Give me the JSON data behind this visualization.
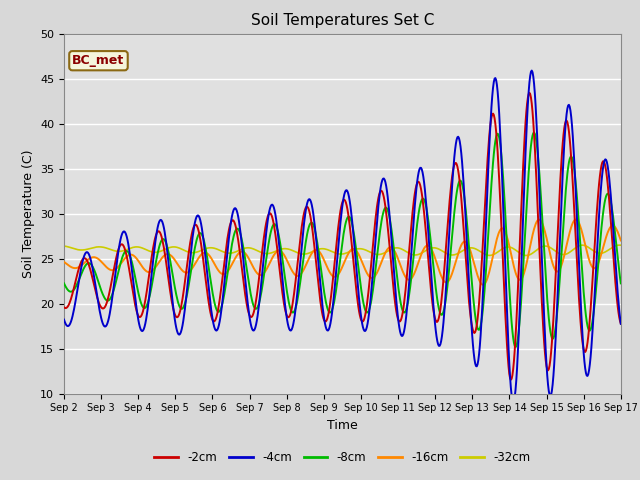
{
  "title": "Soil Temperatures Set C",
  "xlabel": "Time",
  "ylabel": "Soil Temperature (C)",
  "ylim": [
    10,
    50
  ],
  "annotation": "BC_met",
  "legend_labels": [
    "-2cm",
    "-4cm",
    "-8cm",
    "-16cm",
    "-32cm"
  ],
  "legend_colors": [
    "#cc0000",
    "#0000cc",
    "#00bb00",
    "#ff8800",
    "#cccc00"
  ],
  "bg_color": "#e0e0e0",
  "grid_color": "#ffffff",
  "title_fontsize": 11,
  "axis_fontsize": 9,
  "tick_fontsize": 8,
  "yticks": [
    10,
    15,
    20,
    25,
    30,
    35,
    40,
    45,
    50
  ],
  "xtick_labels": [
    "Sep 2",
    "Sep 3",
    "Sep 4",
    "Sep 5",
    "Sep 6",
    "Sep 7",
    "Sep 8",
    "Sep 9",
    "Sep 10",
    "Sep 11",
    "Sep 12",
    "Sep 13",
    "Sep 14",
    "Sep 15",
    "Sep 16",
    "Sep 17"
  ]
}
